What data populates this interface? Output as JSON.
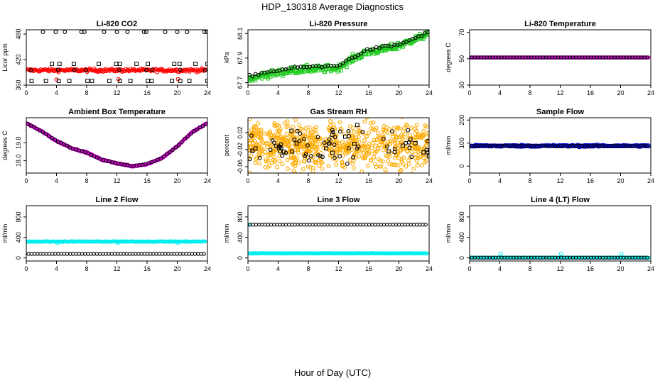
{
  "figure": {
    "title": "HDP_130318  Average Diagnostics",
    "xlabel": "Hour of Day (UTC)"
  },
  "chart_data": [
    {
      "type": "scatter",
      "title": "Li-820 CO2",
      "ylabel": "Licor ppm",
      "xlim": [
        0,
        24
      ],
      "ylim": [
        360,
        490
      ],
      "xticks": [
        0,
        4,
        8,
        12,
        16,
        20,
        24
      ],
      "yticks": [
        360,
        420,
        480
      ],
      "series": [
        {
          "color": "#ff0000",
          "marker": "circle",
          "pattern": "band",
          "y": 395,
          "noise": 2
        },
        {
          "color": "#ff0000",
          "marker": "circle",
          "x": [
            4.0,
            12.2,
            20.1
          ],
          "y": [
            373,
            374,
            374
          ]
        },
        {
          "color": "#000000",
          "marker": "circle",
          "x": [
            0.6,
            4.2,
            6.4,
            7.9,
            12.3,
            15.9,
            16.7,
            20.4,
            23.7
          ],
          "y": [
            395,
            396,
            395,
            395,
            396,
            395,
            396,
            396,
            395
          ]
        },
        {
          "color": "#000000",
          "marker": "circle",
          "x": [
            2.2,
            3.9,
            5.1,
            7.3,
            7.7,
            10.3,
            12.0,
            13.4,
            15.6,
            15.9,
            18.4,
            20.0,
            21.3,
            23.6,
            23.9
          ],
          "y": [
            485,
            485,
            485,
            485,
            485,
            485,
            485,
            485,
            485,
            485,
            485,
            485,
            485,
            485,
            485
          ]
        },
        {
          "color": "#000000",
          "marker": "square",
          "x": [
            3.4,
            4.4,
            6.3,
            9.6,
            11.9,
            12.4,
            14.6,
            16.1,
            19.6,
            20.3,
            22.4,
            24.0
          ],
          "y": [
            410,
            410,
            410,
            410,
            410,
            410,
            410,
            410,
            410,
            410,
            410,
            410
          ]
        },
        {
          "color": "#000000",
          "marker": "square",
          "x": [
            0.7,
            2.6,
            4.3,
            5.7,
            8.1,
            8.7,
            11.0,
            12.4,
            13.8,
            16.1,
            16.6,
            19.3,
            20.4,
            21.6,
            24.0
          ],
          "y": [
            370,
            370,
            370,
            370,
            370,
            370,
            370,
            370,
            370,
            370,
            370,
            370,
            370,
            370,
            370
          ]
        }
      ]
    },
    {
      "type": "scatter",
      "title": "Li-820 Pressure",
      "ylabel": "kPa",
      "xlim": [
        0,
        24
      ],
      "ylim": [
        67.68,
        68.13
      ],
      "xticks": [
        0,
        4,
        8,
        12,
        16,
        20,
        24
      ],
      "yticks": [
        67.7,
        67.9,
        68.1
      ],
      "yticklabels": [
        "67.7",
        "67.9",
        "68.1"
      ],
      "series": [
        {
          "color": "#22cc22",
          "marker": "square",
          "pattern": "trend",
          "xknots": [
            0,
            2,
            4,
            6,
            8,
            10,
            12,
            14,
            16,
            18,
            20,
            22,
            24
          ],
          "yknots": [
            67.72,
            67.76,
            67.78,
            67.8,
            67.81,
            67.81,
            67.82,
            67.9,
            67.95,
            67.97,
            68.0,
            68.05,
            68.1
          ],
          "spread": 0.025
        },
        {
          "color": "#000000",
          "marker": "circle",
          "pattern": "trend",
          "count": 60,
          "xknots": [
            0,
            2,
            4,
            6,
            8,
            10,
            12,
            14,
            16,
            18,
            20,
            22,
            24
          ],
          "yknots": [
            67.75,
            67.78,
            67.8,
            67.82,
            67.83,
            67.83,
            67.84,
            67.91,
            67.97,
            67.99,
            68.01,
            68.06,
            68.11
          ],
          "spread": 0.008
        }
      ]
    },
    {
      "type": "scatter",
      "title": "Li-820 Temperature",
      "ylabel": "degrees C",
      "xlim": [
        0,
        24
      ],
      "ylim": [
        30,
        72
      ],
      "xticks": [
        0,
        4,
        8,
        12,
        16,
        20,
        24
      ],
      "yticks": [
        30,
        50,
        70
      ],
      "series": [
        {
          "color": "#dd00dd",
          "marker": "circle",
          "pattern": "band",
          "y": 51.0,
          "noise": 0
        },
        {
          "color": "#000000",
          "marker": "circle",
          "pattern": "band",
          "y": 51.0,
          "noise": 0,
          "count": 60
        }
      ]
    },
    {
      "type": "scatter",
      "title": "Ambient Box Temperature",
      "ylabel": "degrees C",
      "xlim": [
        0,
        24
      ],
      "ylim": [
        17.3,
        20.4
      ],
      "xticks": [
        0,
        4,
        8,
        12,
        16,
        20,
        24
      ],
      "yticks": [
        18.0,
        19.0
      ],
      "yticklabels": [
        "18.0",
        "19.0"
      ],
      "series": [
        {
          "color": "#dd00dd",
          "marker": "circle",
          "pattern": "trend",
          "xknots": [
            0,
            2,
            4,
            6,
            8,
            10,
            12,
            14,
            16,
            18,
            20,
            22,
            24
          ],
          "yknots": [
            20.1,
            19.65,
            19.1,
            18.7,
            18.45,
            18.05,
            17.85,
            17.68,
            17.8,
            18.15,
            18.8,
            19.6,
            20.1
          ],
          "spread": 0.03
        },
        {
          "color": "#000000",
          "marker": "circle",
          "pattern": "trend",
          "count": 60,
          "xknots": [
            0,
            2,
            4,
            6,
            8,
            10,
            12,
            14,
            16,
            18,
            20,
            22,
            24
          ],
          "yknots": [
            20.1,
            19.65,
            19.1,
            18.7,
            18.45,
            18.05,
            17.85,
            17.68,
            17.8,
            18.15,
            18.8,
            19.6,
            20.1
          ],
          "spread": 0.02
        }
      ]
    },
    {
      "type": "scatter",
      "title": "Gas Stream RH",
      "ylabel": "percent",
      "xlim": [
        0,
        24
      ],
      "ylim": [
        -0.075,
        0.055
      ],
      "xticks": [
        0,
        4,
        8,
        12,
        16,
        20,
        24
      ],
      "yticks": [
        -0.06,
        -0.02,
        0.02
      ],
      "yticklabels": [
        "-0.06",
        "-0.02",
        "0.02"
      ],
      "series": [
        {
          "color": "#ffaa00",
          "marker": "circle",
          "pattern": "noise",
          "count": 700,
          "y": -0.01,
          "noise": 0.028
        },
        {
          "color": "#000000",
          "marker": "circle",
          "pattern": "noise",
          "count": 60,
          "y": -0.01,
          "noise": 0.022
        },
        {
          "color": "#000000",
          "marker": "square",
          "pattern": "noise",
          "count": 20,
          "y": -0.01,
          "noise": 0.025
        }
      ]
    },
    {
      "type": "scatter",
      "title": "Sample Flow",
      "ylabel": "ml/min",
      "xlim": [
        0,
        24
      ],
      "ylim": [
        -30,
        210
      ],
      "xticks": [
        0,
        4,
        8,
        12,
        16,
        20,
        24
      ],
      "yticks": [
        0,
        100,
        200
      ],
      "series": [
        {
          "color": "#0000cc",
          "marker": "square",
          "pattern": "band",
          "y": 88,
          "noise": 2
        },
        {
          "color": "#000000",
          "marker": "circle",
          "pattern": "band",
          "y": 88,
          "noise": 1,
          "count": 60
        }
      ]
    },
    {
      "type": "scatter",
      "title": "Line 2 Flow",
      "ylabel": "ml/min",
      "xlim": [
        0,
        24
      ],
      "ylim": [
        -60,
        1020
      ],
      "xticks": [
        0,
        4,
        8,
        12,
        16,
        20,
        24
      ],
      "yticks": [
        0,
        400,
        800
      ],
      "series": [
        {
          "color": "#00eeee",
          "marker": "circle",
          "pattern": "band",
          "y": 320,
          "noise": 3
        },
        {
          "color": "#00eeee",
          "marker": "circle",
          "x": [
            4.1,
            12.1,
            20.1
          ],
          "y": [
            290,
            290,
            290
          ]
        },
        {
          "color": "#000000",
          "marker": "circle",
          "pattern": "band",
          "y": 80,
          "noise": 0,
          "count": 60
        }
      ]
    },
    {
      "type": "scatter",
      "title": "Line 3 Flow",
      "ylabel": "ml/min",
      "xlim": [
        0,
        24
      ],
      "ylim": [
        -60,
        1020
      ],
      "xticks": [
        0,
        4,
        8,
        12,
        16,
        20,
        24
      ],
      "yticks": [
        0,
        400,
        800
      ],
      "series": [
        {
          "color": "#00eeee",
          "marker": "circle",
          "pattern": "band",
          "y": 90,
          "noise": 2
        },
        {
          "color": "#00eeee",
          "marker": "circle",
          "x": [
            0.1
          ],
          "y": [
            650
          ]
        },
        {
          "color": "#000000",
          "marker": "circle",
          "pattern": "band",
          "y": 650,
          "noise": 0,
          "count": 60
        }
      ]
    },
    {
      "type": "scatter",
      "title": "Line 4 (LT) Flow",
      "ylabel": "ml/min",
      "xlim": [
        0,
        24
      ],
      "ylim": [
        -60,
        1020
      ],
      "xticks": [
        0,
        4,
        8,
        12,
        16,
        20,
        24
      ],
      "yticks": [
        0,
        400,
        800
      ],
      "series": [
        {
          "color": "#00eeee",
          "marker": "circle",
          "pattern": "band",
          "y": 5,
          "noise": 1
        },
        {
          "color": "#00eeee",
          "marker": "circle",
          "x": [
            0.1,
            4.1,
            12.1,
            20.1
          ],
          "y": [
            5,
            80,
            80,
            80
          ]
        },
        {
          "color": "#000000",
          "marker": "circle",
          "pattern": "band",
          "y": 5,
          "noise": 0,
          "count": 60
        }
      ]
    }
  ]
}
